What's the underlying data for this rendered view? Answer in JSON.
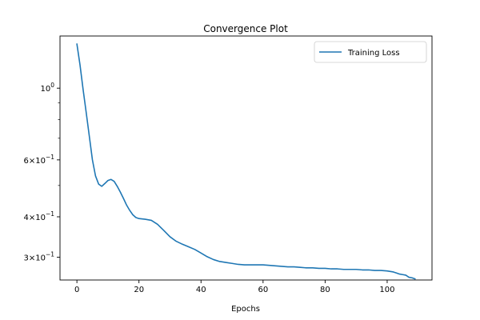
{
  "chart_data": {
    "type": "line",
    "title": "Convergence Plot",
    "xlabel": "Epochs",
    "ylabel": "",
    "yscale": "log",
    "xlim": [
      -5.45,
      114.45
    ],
    "ylim": [
      0.255,
      1.45
    ],
    "x_ticks": [
      {
        "value": 0,
        "label": "0"
      },
      {
        "value": 20,
        "label": "20"
      },
      {
        "value": 40,
        "label": "40"
      },
      {
        "value": 60,
        "label": "60"
      },
      {
        "value": 80,
        "label": "80"
      },
      {
        "value": 100,
        "label": "100"
      }
    ],
    "y_major_ticks": [
      {
        "value": 1.0,
        "base": "10",
        "exp": "0",
        "mantissa": ""
      },
      {
        "value": 0.6,
        "base": "10",
        "exp": "−1",
        "mantissa": "6×"
      },
      {
        "value": 0.4,
        "base": "10",
        "exp": "−1",
        "mantissa": "4×"
      },
      {
        "value": 0.3,
        "base": "10",
        "exp": "−1",
        "mantissa": "3×"
      }
    ],
    "y_minor_ticks": [
      0.9,
      0.8,
      0.7,
      0.5
    ],
    "grid": false,
    "legend_position": "top-right",
    "series": [
      {
        "name": "Training Loss",
        "color": "#1f77b4",
        "x": [
          0,
          1,
          2,
          3,
          4,
          5,
          6,
          7,
          8,
          9,
          10,
          11,
          12,
          13,
          14,
          15,
          16,
          17,
          18,
          19,
          20,
          22,
          24,
          26,
          28,
          30,
          32,
          34,
          36,
          38,
          40,
          42,
          44,
          46,
          48,
          50,
          52,
          54,
          56,
          58,
          60,
          62,
          64,
          66,
          68,
          70,
          72,
          74,
          76,
          78,
          80,
          82,
          84,
          86,
          88,
          90,
          92,
          94,
          96,
          98,
          100,
          101,
          102,
          103,
          104,
          105,
          106,
          107,
          108,
          109
        ],
        "y": [
          1.37,
          1.18,
          0.99,
          0.84,
          0.71,
          0.6,
          0.535,
          0.505,
          0.497,
          0.507,
          0.518,
          0.522,
          0.515,
          0.497,
          0.477,
          0.456,
          0.435,
          0.419,
          0.406,
          0.398,
          0.395,
          0.393,
          0.39,
          0.379,
          0.363,
          0.347,
          0.336,
          0.329,
          0.323,
          0.317,
          0.309,
          0.301,
          0.295,
          0.291,
          0.289,
          0.287,
          0.285,
          0.284,
          0.284,
          0.284,
          0.284,
          0.283,
          0.282,
          0.281,
          0.28,
          0.28,
          0.279,
          0.278,
          0.278,
          0.277,
          0.277,
          0.276,
          0.276,
          0.275,
          0.275,
          0.275,
          0.274,
          0.274,
          0.273,
          0.273,
          0.272,
          0.271,
          0.27,
          0.268,
          0.266,
          0.265,
          0.264,
          0.26,
          0.259,
          0.257
        ]
      }
    ]
  }
}
